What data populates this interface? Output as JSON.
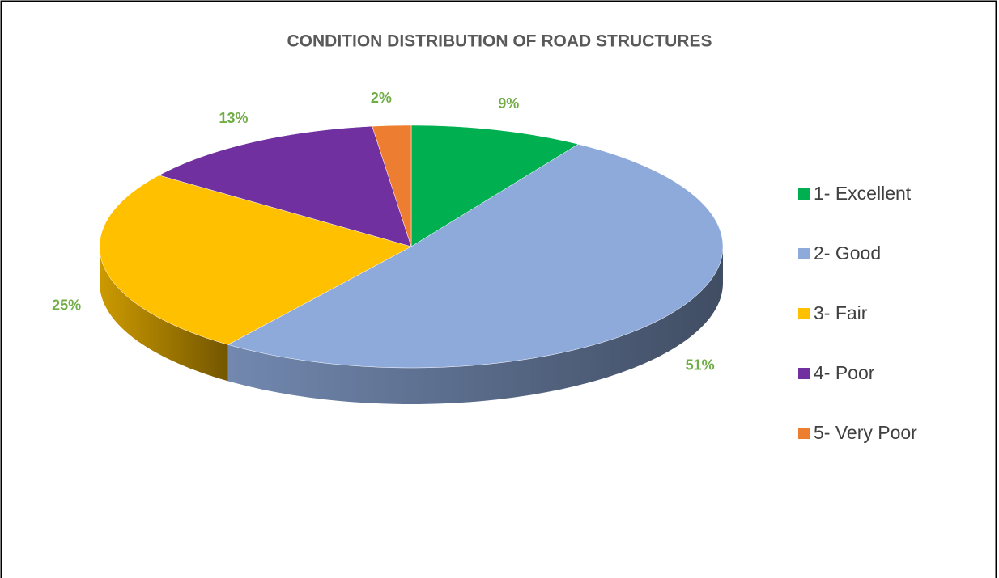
{
  "chart_data": {
    "type": "pie",
    "title": "CONDITION DISTRIBUTION OF ROAD STRUCTURES",
    "categories": [
      "1- Excellent",
      "2- Good",
      "3- Fair",
      "4- Poor",
      "5- Very Poor"
    ],
    "values": [
      9,
      51,
      25,
      13,
      2
    ],
    "value_labels": [
      "9%",
      "51%",
      "25%",
      "13%",
      "2%"
    ],
    "colors": [
      "#00b050",
      "#8eaadb",
      "#ffc000",
      "#7030a0",
      "#ed7d31"
    ],
    "legend": "right"
  }
}
